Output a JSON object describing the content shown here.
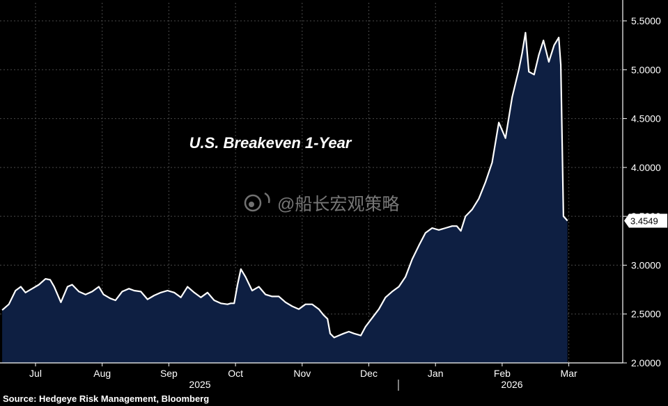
{
  "colors": {
    "background": "#000000",
    "plot_background": "#000000",
    "area_fill": "#0e1f42",
    "line": "#ffffff",
    "grid": "#4a4a4a",
    "axis_text": "#ffffff",
    "current_label_bg": "#ffffff",
    "current_label_text": "#000000"
  },
  "watermark": "@船长宏观策略",
  "source": "Source: Hedgeye Risk Management, Bloomberg",
  "chart_data": {
    "type": "area",
    "title": "U.S. Breakeven 1-Year",
    "xlabel": "",
    "ylabel": "",
    "x_units": "months since 2025-06-01",
    "month_labels": [
      "Jul",
      "Aug",
      "Sep",
      "Oct",
      "Nov",
      "Dec",
      "Jan",
      "Feb",
      "Mar"
    ],
    "year_labels": [
      "2025",
      "2026"
    ],
    "y_ticks": [
      "2.0000",
      "2.5000",
      "3.0000",
      "3.5000",
      "4.0000",
      "4.5000",
      "5.0000",
      "5.5000"
    ],
    "ylim": [
      2.0,
      5.5
    ],
    "grid": true,
    "current_value_label": "3.4549",
    "series": [
      {
        "values": [
          [
            0.5,
            2.54
          ],
          [
            0.6,
            2.6
          ],
          [
            0.7,
            2.74
          ],
          [
            0.78,
            2.78
          ],
          [
            0.85,
            2.72
          ],
          [
            0.95,
            2.76
          ],
          [
            1.05,
            2.8
          ],
          [
            1.15,
            2.86
          ],
          [
            1.22,
            2.85
          ],
          [
            1.28,
            2.78
          ],
          [
            1.38,
            2.62
          ],
          [
            1.48,
            2.78
          ],
          [
            1.55,
            2.8
          ],
          [
            1.65,
            2.73
          ],
          [
            1.75,
            2.7
          ],
          [
            1.85,
            2.73
          ],
          [
            1.95,
            2.78
          ],
          [
            2.02,
            2.7
          ],
          [
            2.12,
            2.66
          ],
          [
            2.2,
            2.64
          ],
          [
            2.3,
            2.73
          ],
          [
            2.4,
            2.76
          ],
          [
            2.48,
            2.74
          ],
          [
            2.58,
            2.73
          ],
          [
            2.68,
            2.65
          ],
          [
            2.78,
            2.69
          ],
          [
            2.88,
            2.72
          ],
          [
            2.98,
            2.74
          ],
          [
            3.08,
            2.72
          ],
          [
            3.18,
            2.67
          ],
          [
            3.28,
            2.78
          ],
          [
            3.38,
            2.72
          ],
          [
            3.48,
            2.67
          ],
          [
            3.58,
            2.72
          ],
          [
            3.68,
            2.64
          ],
          [
            3.78,
            2.61
          ],
          [
            3.88,
            2.6
          ],
          [
            3.93,
            2.61
          ],
          [
            3.98,
            2.61
          ],
          [
            4.03,
            2.8
          ],
          [
            4.08,
            2.96
          ],
          [
            4.15,
            2.88
          ],
          [
            4.25,
            2.74
          ],
          [
            4.35,
            2.78
          ],
          [
            4.45,
            2.7
          ],
          [
            4.55,
            2.68
          ],
          [
            4.65,
            2.68
          ],
          [
            4.75,
            2.62
          ],
          [
            4.85,
            2.58
          ],
          [
            4.95,
            2.55
          ],
          [
            5.05,
            2.6
          ],
          [
            5.15,
            2.6
          ],
          [
            5.25,
            2.55
          ],
          [
            5.32,
            2.49
          ],
          [
            5.38,
            2.45
          ],
          [
            5.42,
            2.3
          ],
          [
            5.48,
            2.26
          ],
          [
            5.55,
            2.28
          ],
          [
            5.62,
            2.3
          ],
          [
            5.7,
            2.32
          ],
          [
            5.78,
            2.3
          ],
          [
            5.88,
            2.28
          ],
          [
            5.95,
            2.37
          ],
          [
            6.05,
            2.46
          ],
          [
            6.15,
            2.55
          ],
          [
            6.25,
            2.67
          ],
          [
            6.35,
            2.73
          ],
          [
            6.45,
            2.78
          ],
          [
            6.55,
            2.88
          ],
          [
            6.65,
            3.06
          ],
          [
            6.75,
            3.2
          ],
          [
            6.85,
            3.33
          ],
          [
            6.95,
            3.38
          ],
          [
            7.05,
            3.36
          ],
          [
            7.15,
            3.38
          ],
          [
            7.25,
            3.4
          ],
          [
            7.32,
            3.4
          ],
          [
            7.38,
            3.35
          ],
          [
            7.45,
            3.5
          ],
          [
            7.55,
            3.57
          ],
          [
            7.65,
            3.68
          ],
          [
            7.75,
            3.85
          ],
          [
            7.85,
            4.05
          ],
          [
            7.95,
            4.46
          ],
          [
            8.05,
            4.3
          ],
          [
            8.15,
            4.72
          ],
          [
            8.25,
            5.0
          ],
          [
            8.3,
            5.17
          ],
          [
            8.35,
            5.38
          ],
          [
            8.4,
            4.98
          ],
          [
            8.48,
            4.95
          ],
          [
            8.55,
            5.15
          ],
          [
            8.62,
            5.3
          ],
          [
            8.7,
            5.08
          ],
          [
            8.78,
            5.25
          ],
          [
            8.85,
            5.33
          ],
          [
            8.88,
            5.05
          ],
          [
            8.92,
            3.5
          ],
          [
            8.98,
            3.4549
          ]
        ]
      }
    ]
  }
}
